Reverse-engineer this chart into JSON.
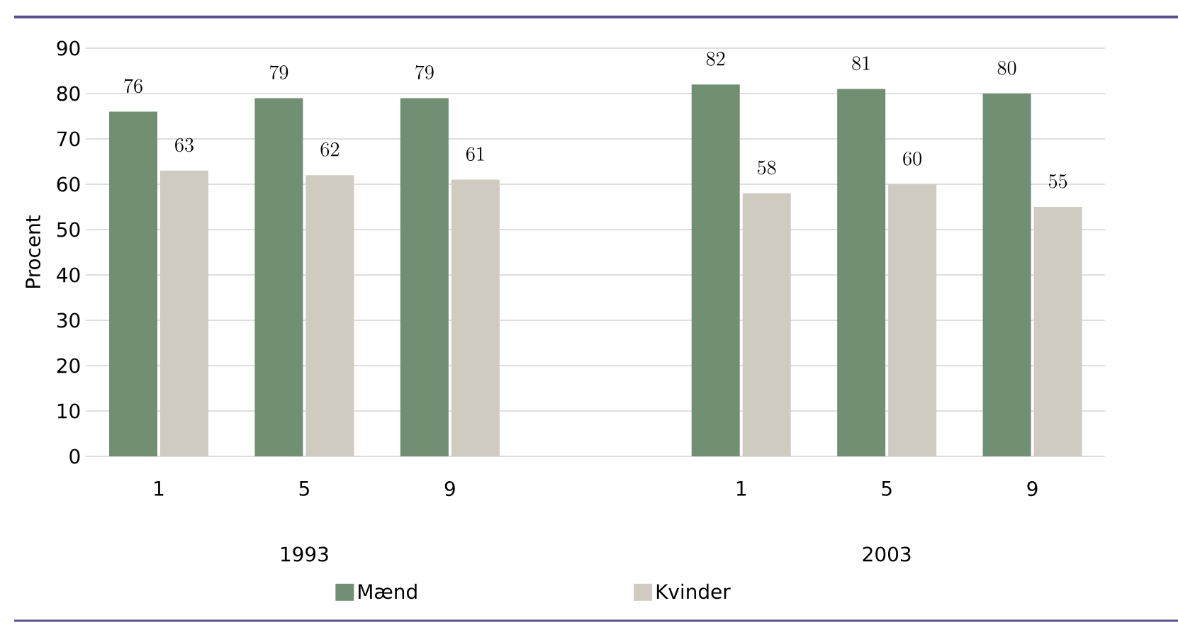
{
  "chart_data": {
    "type": "bar",
    "ylabel": "Procent",
    "categories": [
      "1",
      "5",
      "9",
      null,
      "1",
      "5",
      "9"
    ],
    "series": [
      {
        "name": "Mænd",
        "color": "#718f73",
        "values": [
          76,
          79,
          79,
          null,
          82,
          81,
          80
        ]
      },
      {
        "name": "Kvinder",
        "color": "#cfcbc0",
        "values": [
          63,
          62,
          61,
          null,
          58,
          60,
          55
        ]
      }
    ],
    "ylim": [
      0,
      90
    ],
    "yticks": [
      0,
      10,
      20,
      30,
      40,
      50,
      60,
      70,
      80,
      90
    ],
    "grid": "y",
    "legend": "bottom",
    "data_labels": true,
    "annotations": [
      "1993",
      "2003"
    ]
  }
}
